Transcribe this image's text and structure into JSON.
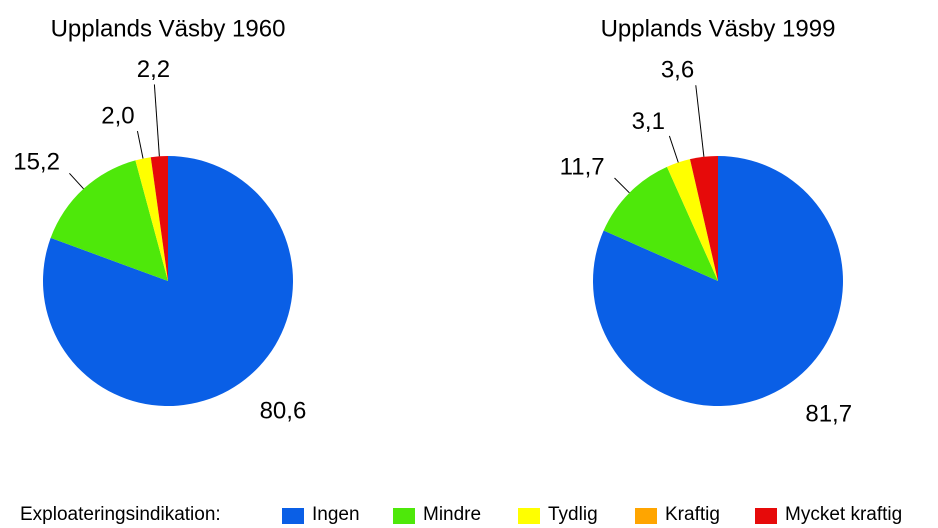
{
  "chart_data": [
    {
      "type": "pie",
      "title": "Upplands Väsby 1960",
      "categories": [
        "Ingen",
        "Mindre",
        "Tydlig",
        "Kraftig",
        "Mycket kraftig"
      ],
      "colors": [
        "#0a5fe6",
        "#4ee80a",
        "#ffff00",
        "#ffa500",
        "#e60a0a"
      ],
      "values": [
        80.6,
        15.2,
        2.0,
        0,
        2.2
      ],
      "value_labels": [
        "80,6",
        "15,2",
        "2,0",
        null,
        "2,2"
      ]
    },
    {
      "type": "pie",
      "title": "Upplands Väsby 1999",
      "categories": [
        "Ingen",
        "Mindre",
        "Tydlig",
        "Kraftig",
        "Mycket kraftig"
      ],
      "colors": [
        "#0a5fe6",
        "#4ee80a",
        "#ffff00",
        "#ffa500",
        "#e60a0a"
      ],
      "values": [
        81.7,
        11.7,
        3.1,
        0,
        3.6
      ],
      "value_labels": [
        "81,7",
        "11,7",
        "3,1",
        null,
        "3,6"
      ]
    }
  ],
  "legend": {
    "title": "Exploateringsindikation:"
  }
}
